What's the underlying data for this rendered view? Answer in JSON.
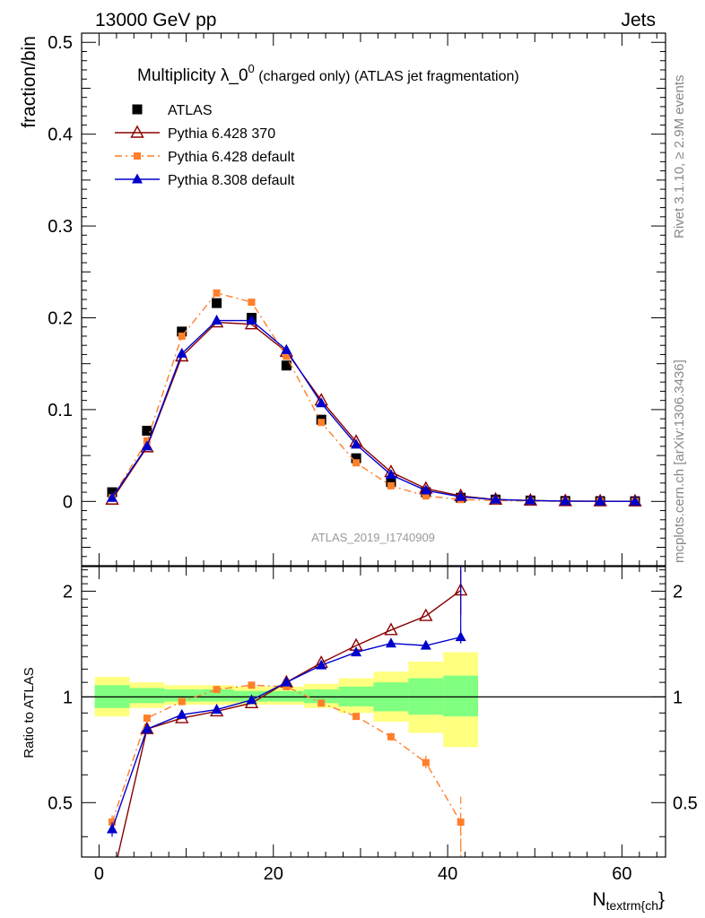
{
  "header": {
    "left": "13000 GeV pp",
    "right": "Jets"
  },
  "side": {
    "top": "Rivet 3.1.10, ≥ 2.9M events",
    "bottom": "mcplots.cern.ch [arXiv:1306.3436]"
  },
  "watermark": "ATLAS_2019_I1740909",
  "colors": {
    "atlas": "#000000",
    "py6_370": "#8b0000",
    "py6_def": "#ff7f2a",
    "py8": "#0000cc",
    "band_inner": "#80ff80",
    "band_outer": "#ffff80"
  },
  "chart_data": [
    {
      "type": "line",
      "title_main": "Multiplicity λ_0",
      "title_sup": "0",
      "title_rest": " (charged only) (ATLAS jet fragmentation)",
      "ylabel": "fraction/bin",
      "xlim": [
        -2,
        65
      ],
      "ylim": [
        -0.07,
        0.51
      ],
      "xticks": [
        0,
        20,
        40,
        60
      ],
      "yticks": [
        0,
        0.1,
        0.2,
        0.3,
        0.4,
        0.5
      ],
      "ytick_labels": [
        "0",
        "0.1",
        "0.2",
        "0.3",
        "0.4",
        "0.5"
      ],
      "x": [
        1.5,
        5.5,
        9.5,
        13.5,
        17.5,
        21.5,
        25.5,
        29.5,
        33.5,
        37.5,
        41.5,
        45.5,
        49.5,
        53.5,
        57.5,
        61.5
      ],
      "legend_position": "top-left",
      "series": [
        {
          "name": "ATLAS",
          "key": "atlas",
          "marker": "square",
          "line": "none",
          "values": [
            0.01,
            0.077,
            0.185,
            0.216,
            0.2,
            0.148,
            0.089,
            0.047,
            0.021,
            0.01,
            0.004,
            0.002,
            0.001,
            0.0005,
            0.0003,
            0.0002
          ]
        },
        {
          "name": "Pythia 6.428 370",
          "key": "py6_370",
          "marker": "open-triangle",
          "line": "solid",
          "values": [
            0.002,
            0.059,
            0.158,
            0.195,
            0.193,
            0.163,
            0.11,
            0.065,
            0.032,
            0.014,
            0.006,
            0.002,
            0.001,
            0.0004,
            0.0002,
            0.0001
          ]
        },
        {
          "name": "Pythia 6.428 default",
          "key": "py6_def",
          "marker": "small-square",
          "line": "dashdot",
          "values": [
            0.004,
            0.066,
            0.18,
            0.227,
            0.217,
            0.158,
            0.086,
            0.042,
            0.017,
            0.006,
            0.002,
            0.001,
            0.0003,
            0.0001,
            0.0,
            0.0
          ]
        },
        {
          "name": "Pythia 8.308 default",
          "key": "py8",
          "marker": "triangle",
          "line": "solid",
          "values": [
            0.004,
            0.06,
            0.161,
            0.197,
            0.197,
            0.165,
            0.107,
            0.062,
            0.029,
            0.012,
            0.005,
            0.002,
            0.001,
            0.0003,
            0.0001,
            0.0
          ]
        }
      ]
    },
    {
      "type": "line",
      "ylabel": "Ratio to ATLAS",
      "xlabel_main": "N",
      "xlabel_sub": "textrm{ch",
      "xlabel_close": "}",
      "xlim": [
        -2,
        65
      ],
      "ylim": [
        0.35,
        2.35
      ],
      "xticks": [
        0,
        20,
        40,
        60
      ],
      "ytick_labels": [
        "0.5",
        "1",
        "2"
      ],
      "yticks": [
        0.5,
        1,
        2
      ],
      "x": [
        1.5,
        5.5,
        9.5,
        13.5,
        17.5,
        21.5,
        25.5,
        29.5,
        33.5,
        37.5,
        41.5
      ],
      "band_edges": [
        -0.5,
        3.5,
        7.5,
        11.5,
        15.5,
        19.5,
        23.5,
        27.5,
        31.5,
        35.5,
        39.5,
        43.5
      ],
      "band_inner": [
        [
          0.93,
          1.08
        ],
        [
          0.96,
          1.06
        ],
        [
          0.97,
          1.05
        ],
        [
          0.97,
          1.05
        ],
        [
          0.97,
          1.04
        ],
        [
          0.97,
          1.04
        ],
        [
          0.96,
          1.05
        ],
        [
          0.94,
          1.07
        ],
        [
          0.91,
          1.1
        ],
        [
          0.89,
          1.13
        ],
        [
          0.88,
          1.15
        ]
      ],
      "band_outer": [
        [
          0.88,
          1.14
        ],
        [
          0.93,
          1.1
        ],
        [
          0.95,
          1.08
        ],
        [
          0.95,
          1.08
        ],
        [
          0.95,
          1.07
        ],
        [
          0.95,
          1.07
        ],
        [
          0.93,
          1.09
        ],
        [
          0.9,
          1.13
        ],
        [
          0.85,
          1.18
        ],
        [
          0.79,
          1.26
        ],
        [
          0.72,
          1.34
        ]
      ],
      "series": [
        {
          "name": "Pythia 6.428 370",
          "key": "py6_370",
          "marker": "open-triangle",
          "line": "solid",
          "values": [
            0.3,
            0.81,
            0.87,
            0.91,
            0.96,
            1.1,
            1.25,
            1.4,
            1.55,
            1.7,
            2.01
          ],
          "err": [
            0,
            0,
            0,
            0,
            0,
            0,
            0,
            0,
            0,
            0,
            0.3
          ]
        },
        {
          "name": "Pythia 6.428 default",
          "key": "py6_def",
          "marker": "small-square",
          "line": "dashdot",
          "values": [
            0.44,
            0.87,
            0.97,
            1.05,
            1.08,
            1.07,
            0.96,
            0.88,
            0.77,
            0.65,
            0.44
          ],
          "err": [
            0.02,
            0,
            0,
            0,
            0,
            0,
            0,
            0,
            0.02,
            0.03,
            0.08
          ]
        },
        {
          "name": "Pythia 8.308 default",
          "key": "py8",
          "marker": "triangle",
          "line": "solid",
          "values": [
            0.42,
            0.81,
            0.89,
            0.92,
            0.98,
            1.1,
            1.23,
            1.34,
            1.42,
            1.4,
            1.48
          ],
          "err": [
            0.02,
            0,
            0,
            0,
            0,
            0,
            0,
            0,
            0,
            0.02,
            0.06
          ]
        }
      ]
    }
  ]
}
